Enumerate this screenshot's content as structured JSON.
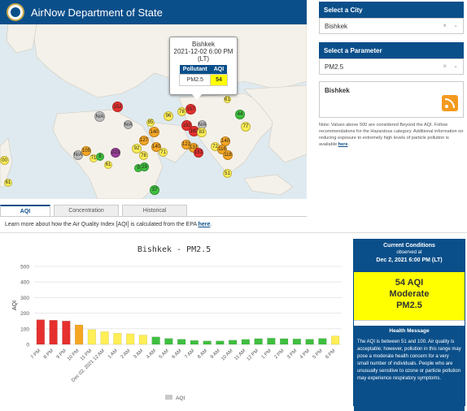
{
  "header": {
    "title": "AirNow Department of State"
  },
  "map": {
    "popup": {
      "city": "Bishkek",
      "datetime": "2021-12-02 6:00 PM",
      "tz": "(LT)",
      "col_pollutant": "Pollutant",
      "col_aqi": "AQI",
      "pollutant": "PM2.5",
      "aqi": "54"
    },
    "markers": [
      {
        "label": "157",
        "color": "#e5302e"
      },
      {
        "label": "78",
        "color": "#ffee55"
      },
      {
        "label": "61",
        "color": "#ffee55"
      },
      {
        "label": "152",
        "color": "#e5302e"
      },
      {
        "label": "N/A",
        "color": "#bdbdbd"
      },
      {
        "label": "N/A",
        "color": "#bdbdbd"
      },
      {
        "label": "85",
        "color": "#ffee55"
      },
      {
        "label": "140",
        "color": "#f5a623"
      },
      {
        "label": "96",
        "color": "#ffee55"
      },
      {
        "label": "192",
        "color": "#e5302e"
      },
      {
        "label": "162",
        "color": "#e5302e"
      },
      {
        "label": "44",
        "color": "#3fbf3f"
      },
      {
        "label": "77",
        "color": "#ffee55"
      },
      {
        "label": "N/A",
        "color": "#bdbdbd"
      },
      {
        "label": "140",
        "color": "#f5a623"
      },
      {
        "label": "71",
        "color": "#ffee55"
      },
      {
        "label": "83",
        "color": "#ffee55"
      },
      {
        "label": "127",
        "color": "#f5a623"
      },
      {
        "label": "92",
        "color": "#ffee55"
      },
      {
        "label": "121",
        "color": "#f5a623"
      },
      {
        "label": "131",
        "color": "#f5a623"
      },
      {
        "label": "151",
        "color": "#e5302e"
      },
      {
        "label": "140",
        "color": "#f5a623"
      },
      {
        "label": "72",
        "color": "#ffee55"
      },
      {
        "label": "116",
        "color": "#f5a623"
      },
      {
        "label": "118",
        "color": "#f5a623"
      },
      {
        "label": "N/A",
        "color": "#bdbdbd"
      },
      {
        "label": "105",
        "color": "#f5a623"
      },
      {
        "label": "71",
        "color": "#ffee55"
      },
      {
        "label": "8",
        "color": "#3fbf3f"
      },
      {
        "label": "223",
        "color": "#9b3f99"
      },
      {
        "label": "78",
        "color": "#ffee55"
      },
      {
        "label": "61",
        "color": "#ffee55"
      },
      {
        "label": "9",
        "color": "#3fbf3f"
      },
      {
        "label": "29",
        "color": "#3fbf3f"
      },
      {
        "label": "51",
        "color": "#ffee55"
      },
      {
        "label": "37",
        "color": "#3fbf3f"
      },
      {
        "label": "00",
        "color": "#ffee55"
      },
      {
        "label": "61",
        "color": "#ffee55"
      }
    ]
  },
  "city_select": {
    "title": "Select a City",
    "value": "Bishkek"
  },
  "param_select": {
    "title": "Select a Parameter",
    "value": "PM2.5"
  },
  "city_panel": {
    "name": "Bishkek"
  },
  "note": {
    "text": "Note: Values above 500 are considered Beyond the AQI. Follow recommendations for the Hazardous category. Additional information on reducing exposure to extremely high levels of particle pollution is available ",
    "link": "here",
    "end": "."
  },
  "tabs": [
    {
      "label": "AQI"
    },
    {
      "label": "Concentration"
    },
    {
      "label": "Historical"
    }
  ],
  "learn": {
    "text": "Learn more about how the Air Quality Index [AQI] is calculated from the EPA ",
    "link": "here",
    "end": "."
  },
  "chart_data": {
    "type": "bar",
    "title": "Bishkek - PM2.5",
    "ylabel": "AQI",
    "ylim": [
      0,
      500
    ],
    "yticks": [
      0,
      100,
      200,
      300,
      400,
      500
    ],
    "legend": "AQI",
    "categories": [
      "7 PM",
      "8 PM",
      "9 PM",
      "10 PM",
      "11 PM",
      "Dec 02, 2021 12 AM",
      "1 AM",
      "2 AM",
      "3 AM",
      "4 AM",
      "5 AM",
      "6 AM",
      "7 AM",
      "8 AM",
      "9 AM",
      "10 AM",
      "11 AM",
      "12 PM",
      "1 PM",
      "2 PM",
      "3 PM",
      "4 PM",
      "5 PM",
      "6 PM"
    ],
    "values": [
      158,
      155,
      150,
      125,
      95,
      82,
      72,
      68,
      60,
      48,
      38,
      33,
      25,
      22,
      22,
      27,
      32,
      37,
      40,
      37,
      35,
      33,
      38,
      54
    ],
    "colors": [
      "#e5302e",
      "#e5302e",
      "#e5302e",
      "#f5a623",
      "#ffee55",
      "#ffee55",
      "#ffee55",
      "#ffee55",
      "#ffee55",
      "#3fbf3f",
      "#3fbf3f",
      "#3fbf3f",
      "#3fbf3f",
      "#3fbf3f",
      "#3fbf3f",
      "#3fbf3f",
      "#3fbf3f",
      "#3fbf3f",
      "#3fbf3f",
      "#3fbf3f",
      "#3fbf3f",
      "#3fbf3f",
      "#3fbf3f",
      "#ffee55"
    ]
  },
  "current": {
    "title": "Current Conditions",
    "observed": "observed at",
    "datetime": "Dec 2, 2021 6:00 PM (LT)",
    "aqi": "54 AQI",
    "category": "Moderate",
    "pollutant": "PM2.5",
    "health_title": "Health Message",
    "health_text": "The AQI is between 51 and 100. Air quality is acceptable; however, pollution in this range may pose a moderate health concern for a very small number of individuals. People who are unusually sensitive to ozone or particle pollution may experience respiratory symptoms."
  }
}
